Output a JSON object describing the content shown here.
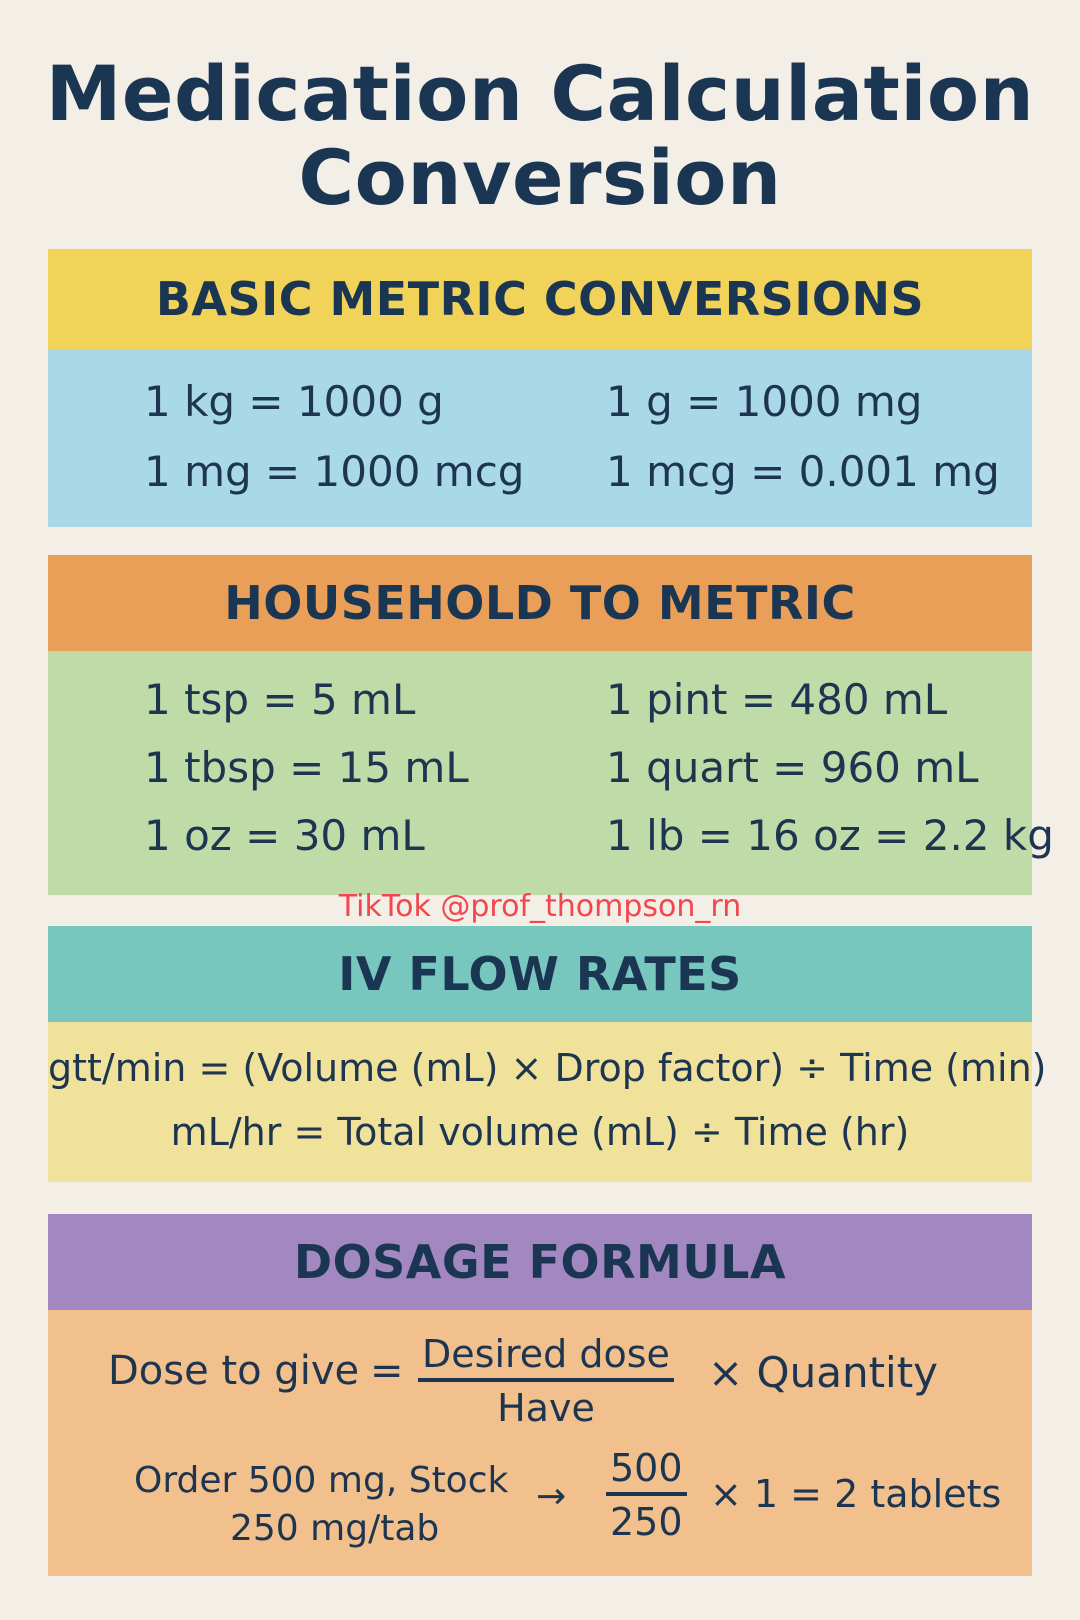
{
  "title": {
    "line1": "Medication Calculation",
    "line2": "Conversion"
  },
  "metric": {
    "header": "BASIC METRIC CONVERSIONS",
    "rows": [
      [
        "1 kg = 1000 g",
        "1 g = 1000 mg"
      ],
      [
        "1 mg = 1000 mcg",
        "1 mcg = 0.001 mg"
      ]
    ]
  },
  "household": {
    "header": "HOUSEHOLD TO METRIC",
    "rows": [
      [
        "1 tsp = 5 mL",
        "1 pint = 480 mL"
      ],
      [
        "1 tbsp = 15 mL",
        "1 quart = 960 mL"
      ],
      [
        "1 oz = 30 mL",
        "1 lb = 16 oz = 2.2 kg"
      ]
    ]
  },
  "watermark": "TikTok @prof_thompson_rn",
  "iv": {
    "header": "IV FLOW RATES",
    "lines": [
      "gtt/min = (Volume (mL) × Drop factor) ÷ Time (min)",
      "mL/hr = Total volume (mL) ÷ Time (hr)"
    ]
  },
  "dosage": {
    "header": "DOSAGE FORMULA",
    "formula": {
      "lhs": "Dose to give",
      "equals": "=",
      "numerator": "Desired dose",
      "denominator": "Have",
      "times": "× Quantity"
    },
    "example": {
      "line1": "Order 500 mg, Stock",
      "line2": "250 mg/tab",
      "arrow": "→",
      "numerator": "500",
      "denominator": "250",
      "result": "× 1 = 2 tablets"
    }
  },
  "colors": {
    "metric_header": "#f1d35a",
    "metric_body": "#a9d9e6",
    "household_header": "#e99f57",
    "household_body": "#bfdca8",
    "iv_header": "#78c7bf",
    "iv_body": "#f0e29a",
    "dosage_header": "#a287c0",
    "dosage_body": "#f2c08c",
    "text": "#1d3550",
    "watermark": "#f2474f"
  }
}
